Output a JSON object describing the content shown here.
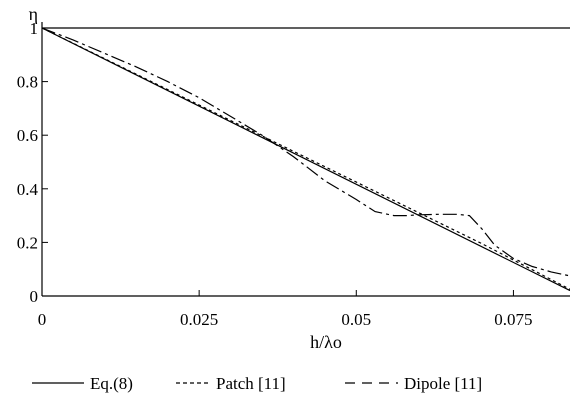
{
  "chart_data": {
    "type": "line",
    "xlabel": "h/λo",
    "ylabel": "η",
    "xlim": [
      0,
      0.084
    ],
    "ylim": [
      0,
      1
    ],
    "x_ticks": [
      "0",
      "0.025",
      "0.05",
      "0.075"
    ],
    "y_ticks": [
      "0",
      "0.2",
      "0.4",
      "0.6",
      "0.8",
      "1"
    ],
    "grid": false,
    "legend_position": "bottom",
    "series": [
      {
        "name": "Eq.(8)",
        "style": "solid",
        "x": [
          0,
          0.084
        ],
        "y": [
          1,
          0.02
        ]
      },
      {
        "name": "Patch [11]",
        "style": "dotted",
        "x": [
          0,
          0.01,
          0.02,
          0.03,
          0.04,
          0.05,
          0.06,
          0.07,
          0.084
        ],
        "y": [
          1,
          0.885,
          0.77,
          0.655,
          0.54,
          0.425,
          0.31,
          0.195,
          0.025
        ]
      },
      {
        "name": "Dipole [11]",
        "style": "dash-dot",
        "x": [
          0,
          0.005,
          0.01,
          0.015,
          0.02,
          0.025,
          0.03,
          0.035,
          0.04,
          0.045,
          0.05,
          0.053,
          0.056,
          0.058,
          0.06,
          0.063,
          0.066,
          0.068,
          0.07,
          0.072,
          0.075,
          0.078,
          0.081,
          0.084
        ],
        "y": [
          1,
          0.955,
          0.905,
          0.855,
          0.8,
          0.74,
          0.67,
          0.6,
          0.52,
          0.43,
          0.36,
          0.315,
          0.3,
          0.3,
          0.303,
          0.305,
          0.305,
          0.3,
          0.25,
          0.19,
          0.14,
          0.11,
          0.09,
          0.075
        ]
      }
    ],
    "hline": {
      "y": 1
    }
  }
}
